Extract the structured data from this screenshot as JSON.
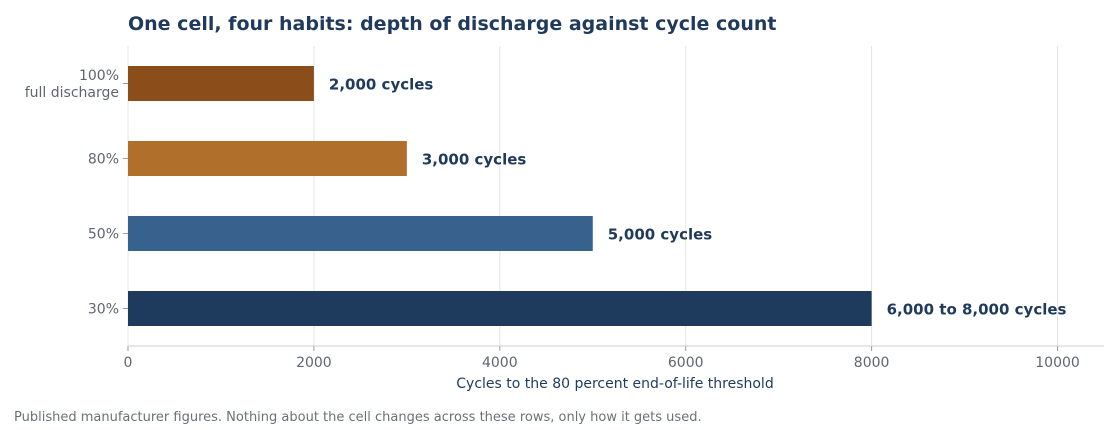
{
  "footnote": "Published manufacturer figures. Nothing about the cell changes across these rows, only how it gets used.",
  "chart_data": {
    "type": "bar",
    "orientation": "horizontal",
    "title": "One cell, four habits: depth of discharge against cycle count",
    "xlabel": "Cycles to the 80 percent end-of-life threshold",
    "ylabel": "",
    "xlim": [
      0,
      10500
    ],
    "xticks": [
      0,
      2000,
      4000,
      6000,
      8000,
      10000
    ],
    "grid": true,
    "legend": "none",
    "categories": [
      [
        "100%",
        "full discharge"
      ],
      [
        "80%"
      ],
      [
        "50%"
      ],
      [
        "30%"
      ]
    ],
    "values": [
      2000,
      3000,
      5000,
      8000
    ],
    "value_labels": [
      "2,000 cycles",
      "3,000 cycles",
      "5,000 cycles",
      "6,000 to 8,000 cycles"
    ],
    "colors": [
      "#8b4e1a",
      "#b06f2a",
      "#37628e",
      "#1e3a5c"
    ]
  }
}
